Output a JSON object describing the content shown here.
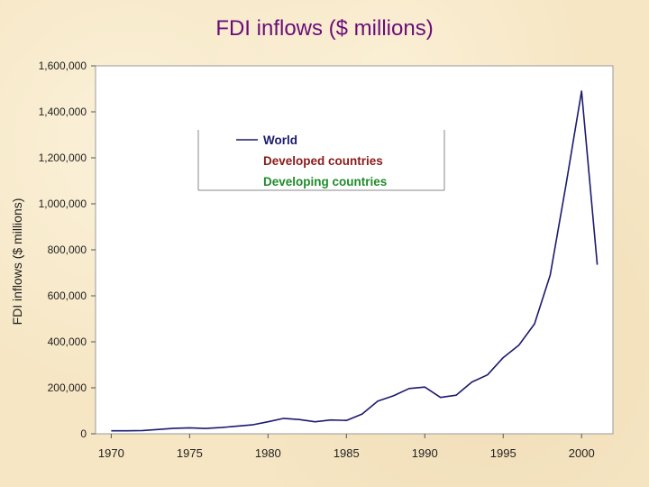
{
  "slide": {
    "title": "FDI inflows ($ millions)"
  },
  "colors": {
    "world": "#1a1a6e",
    "developed": "#8b1a1a",
    "developing": "#1e8c2a",
    "title": "#6a0d7a",
    "plot_background": "#ffffff"
  },
  "chart_data": {
    "type": "line",
    "title": "FDI inflows ($ millions)",
    "xlabel": "",
    "ylabel": "FDI inflows ($ millions)",
    "xlim": [
      1969,
      2002
    ],
    "ylim": [
      0,
      1600000
    ],
    "y_ticks": [
      0,
      200000,
      400000,
      600000,
      800000,
      1000000,
      1200000,
      1400000,
      1600000
    ],
    "y_tick_labels": [
      "0",
      "200,000",
      "400,000",
      "600,000",
      "800,000",
      "1,000,000",
      "1,200,000",
      "1,400,000",
      "1,600,000"
    ],
    "x_ticks": [
      1970,
      1975,
      1980,
      1985,
      1990,
      1995,
      2000
    ],
    "x_tick_labels": [
      "1970",
      "1975",
      "1980",
      "1985",
      "1990",
      "1995",
      "2000"
    ],
    "grid": false,
    "legend_position": "top-center",
    "legend": [
      "World",
      "Developed countries",
      "Developing countries"
    ],
    "series": [
      {
        "name": "World",
        "x": [
          1970,
          1971,
          1972,
          1973,
          1974,
          1975,
          1976,
          1977,
          1978,
          1979,
          1980,
          1981,
          1982,
          1983,
          1984,
          1985,
          1986,
          1987,
          1988,
          1989,
          1990,
          1991,
          1992,
          1993,
          1994,
          1995,
          1996,
          1997,
          1998,
          1999,
          2000,
          2001
        ],
        "y": [
          13000,
          13000,
          14000,
          19000,
          24000,
          26000,
          23000,
          27000,
          33000,
          39000,
          52000,
          67000,
          62000,
          52000,
          60000,
          58000,
          86000,
          142000,
          165000,
          197000,
          203000,
          158000,
          168000,
          225000,
          256000,
          331000,
          385000,
          478000,
          690000,
          1080000,
          1490000,
          735000
        ]
      },
      {
        "name": "Developed countries",
        "x": [],
        "y": []
      },
      {
        "name": "Developing countries",
        "x": [],
        "y": []
      }
    ]
  }
}
